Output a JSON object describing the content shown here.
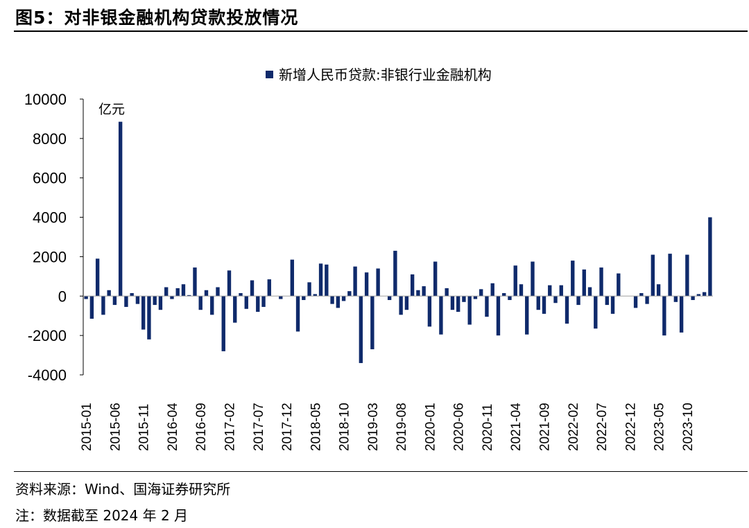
{
  "header": {
    "title": "图5：对非银金融机构贷款投放情况"
  },
  "footer": {
    "source": "资料来源：Wind、国海证券研究所",
    "note": "注：数据截至 2024 年 2 月"
  },
  "chart_data": {
    "type": "bar",
    "unit_label": "亿元",
    "ylim": [
      -4000,
      10000
    ],
    "yticks": [
      -4000,
      -2000,
      0,
      2000,
      4000,
      6000,
      8000,
      10000
    ],
    "legend_position": "top",
    "grid": false,
    "colors": {
      "bar": "#0f2a6b"
    },
    "series": [
      {
        "name": "新增人民币贷款:非银行业金融机构",
        "values": [
          -150,
          -1150,
          1900,
          -950,
          300,
          -450,
          8850,
          -550,
          150,
          -400,
          -1700,
          -2200,
          -450,
          -700,
          450,
          -150,
          400,
          600,
          50,
          1450,
          -700,
          300,
          -950,
          450,
          -2800,
          1300,
          -1350,
          150,
          -650,
          800,
          -800,
          -550,
          850,
          0,
          -150,
          0,
          1850,
          -1800,
          -200,
          700,
          100,
          1650,
          1600,
          -400,
          -600,
          -250,
          250,
          1500,
          -3400,
          1200,
          -2700,
          1400,
          0,
          -200,
          2300,
          -950,
          -700,
          1100,
          300,
          500,
          -1550,
          1750,
          -1950,
          400,
          -700,
          -800,
          -300,
          -1450,
          -150,
          350,
          -1050,
          650,
          -2000,
          150,
          -200,
          1550,
          600,
          -1950,
          1750,
          -700,
          -900,
          550,
          -350,
          550,
          -1400,
          1800,
          -450,
          1350,
          450,
          -1650,
          1450,
          -450,
          -900,
          1150,
          0,
          0,
          -600,
          150,
          -400,
          2100,
          600,
          -2000,
          2150,
          -300,
          -1850,
          2100,
          -200,
          100,
          200,
          4000
        ]
      }
    ],
    "x_tick_labels": [
      "2015-01",
      "2015-06",
      "2015-11",
      "2016-04",
      "2016-09",
      "2017-02",
      "2017-07",
      "2017-12",
      "2018-05",
      "2018-10",
      "2019-03",
      "2019-08",
      "2020-01",
      "2020-06",
      "2020-11",
      "2021-04",
      "2021-09",
      "2022-02",
      "2022-07",
      "2022-12",
      "2023-05",
      "2023-10"
    ]
  }
}
